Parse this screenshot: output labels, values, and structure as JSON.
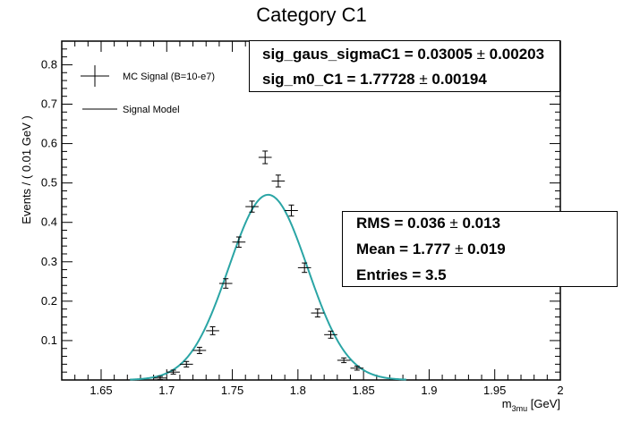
{
  "chart_data": {
    "type": "scatter",
    "title": "Category C1",
    "xlabel_main": "m",
    "xlabel_sub": "3mu",
    "xlabel_unit": " [GeV]",
    "ylabel": "Events / ( 0.01 GeV )",
    "xlim": [
      1.62,
      2.0
    ],
    "ylim": [
      0,
      0.86
    ],
    "x_ticks": [
      "1.65",
      "1.7",
      "1.75",
      "1.8",
      "1.85",
      "1.9",
      "1.95",
      "2"
    ],
    "x_tick_values": [
      1.65,
      1.7,
      1.75,
      1.8,
      1.85,
      1.9,
      1.95,
      2.0
    ],
    "y_ticks": [
      "0.1",
      "0.2",
      "0.3",
      "0.4",
      "0.5",
      "0.6",
      "0.7",
      "0.8"
    ],
    "y_tick_values": [
      0.1,
      0.2,
      0.3,
      0.4,
      0.5,
      0.6,
      0.7,
      0.8
    ],
    "series": [
      {
        "name": "MC Signal (B=10-e7)",
        "kind": "points-with-errors",
        "color": "#000000",
        "x": [
          1.695,
          1.705,
          1.715,
          1.725,
          1.735,
          1.745,
          1.755,
          1.765,
          1.775,
          1.785,
          1.795,
          1.805,
          1.815,
          1.825,
          1.835,
          1.845
        ],
        "y": [
          0.005,
          0.02,
          0.04,
          0.075,
          0.125,
          0.245,
          0.35,
          0.44,
          0.565,
          0.505,
          0.43,
          0.285,
          0.17,
          0.115,
          0.05,
          0.03
        ],
        "yerr": [
          0.004,
          0.005,
          0.007,
          0.008,
          0.01,
          0.012,
          0.013,
          0.014,
          0.016,
          0.015,
          0.014,
          0.012,
          0.01,
          0.009,
          0.006,
          0.005
        ],
        "xerr": 0.005
      },
      {
        "name": "Signal Model",
        "kind": "gaussian-curve",
        "color": "#2aa5a5",
        "mean": 1.77728,
        "sigma": 0.03005,
        "amplitude": 0.47
      }
    ],
    "legend": "top-left",
    "grid": false
  },
  "fit_box": {
    "line1_label": "sig_gaus_sigmaC1 =  0.03005 ",
    "line1_pm": "±",
    "line1_err": " 0.00203",
    "line2_label": "sig_m0_C1 =  1.77728 ",
    "line2_pm": "±",
    "line2_err": " 0.00194"
  },
  "stats_box": {
    "rms_label": "RMS =  0.036 ",
    "rms_pm": "±",
    "rms_err": " 0.013",
    "mean_label": "Mean =  1.777 ",
    "mean_pm": "±",
    "mean_err": " 0.019",
    "entries_label": "Entries =  3.5"
  }
}
